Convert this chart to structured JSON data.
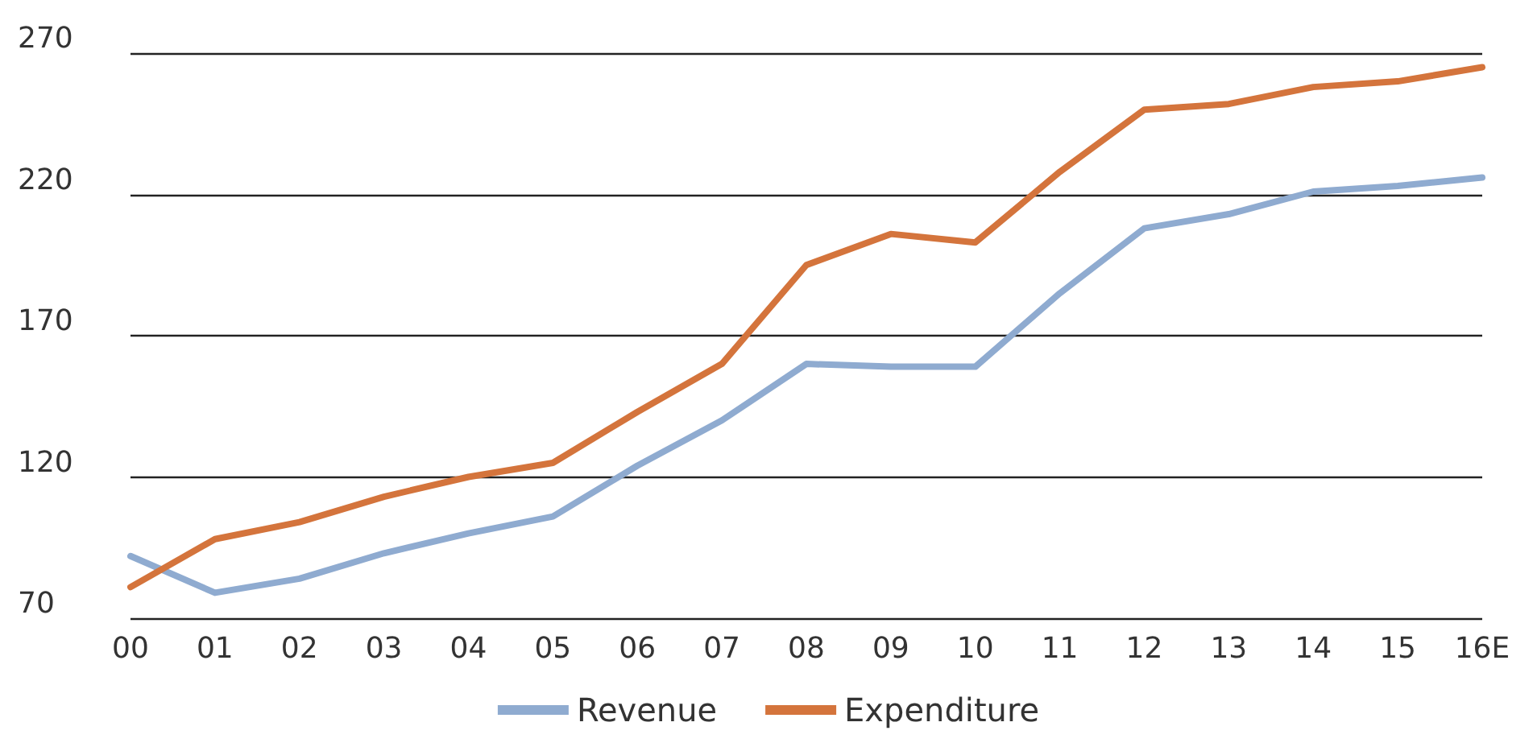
{
  "chart_data": {
    "type": "line",
    "categories": [
      "00",
      "01",
      "02",
      "03",
      "04",
      "05",
      "06",
      "07",
      "08",
      "09",
      "10",
      "11",
      "12",
      "13",
      "14",
      "15",
      "16E"
    ],
    "series": [
      {
        "name": "Revenue",
        "color": "#8fabd0",
        "values": [
          92,
          79,
          84,
          93,
          100,
          106,
          124,
          140,
          160,
          159,
          159,
          185,
          208,
          213,
          221,
          223,
          226
        ]
      },
      {
        "name": "Expenditure",
        "color": "#d4743c",
        "values": [
          81,
          98,
          104,
          113,
          120,
          125,
          143,
          160,
          195,
          206,
          203,
          228,
          250,
          252,
          258,
          260,
          265
        ]
      }
    ],
    "ylim": [
      70,
      270
    ],
    "yticks": [
      70,
      120,
      170,
      220,
      270
    ],
    "grid": "y",
    "legend": "bottom",
    "marker": "none",
    "line_style": "solid"
  }
}
